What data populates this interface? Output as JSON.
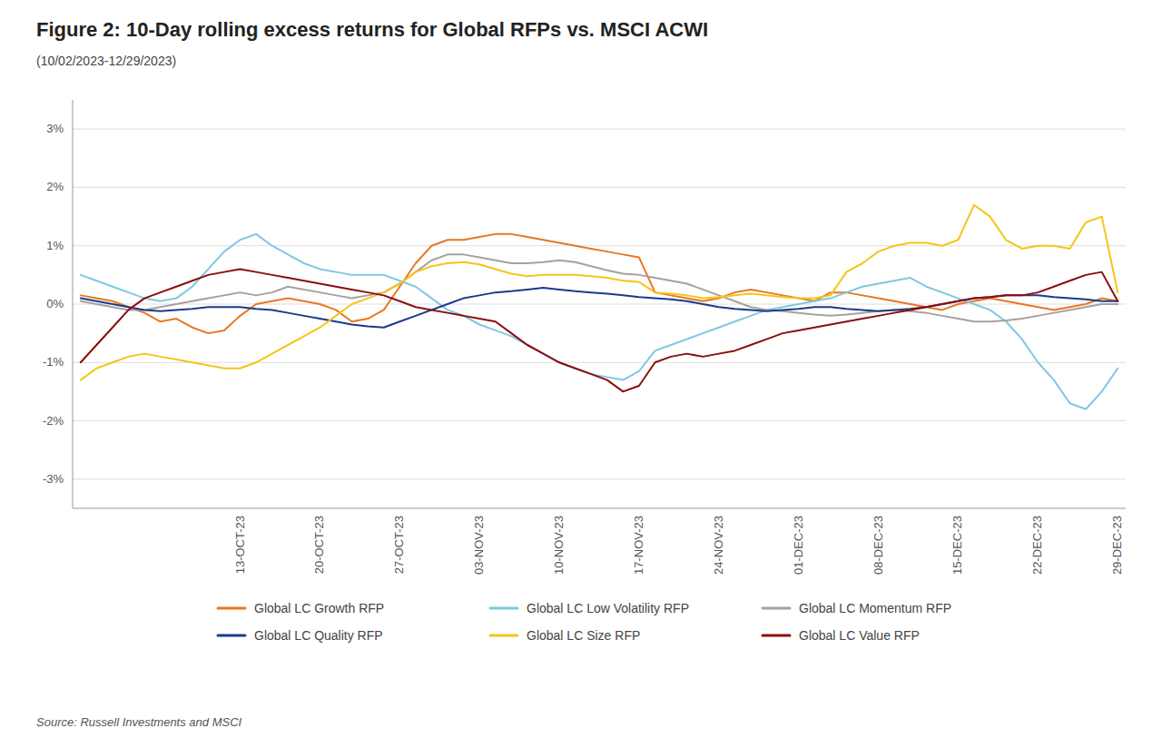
{
  "chart_data": {
    "type": "line",
    "title": "Figure 2: 10-Day rolling excess returns for Global RFPs vs. MSCI ACWI",
    "subtitle": "(10/02/2023-12/29/2023)",
    "source": "Source: Russell Investments and MSCI",
    "categories": [
      null,
      null,
      null,
      null,
      null,
      null,
      null,
      null,
      null,
      null,
      "13-OCT-23",
      null,
      null,
      null,
      null,
      "20-OCT-23",
      null,
      null,
      null,
      null,
      "27-OCT-23",
      null,
      null,
      null,
      null,
      "03-NOV-23",
      null,
      null,
      null,
      null,
      "10-NOV-23",
      null,
      null,
      null,
      null,
      "17-NOV-23",
      null,
      null,
      null,
      null,
      "24-NOV-23",
      null,
      null,
      null,
      null,
      "01-DEC-23",
      null,
      null,
      null,
      null,
      "08-DEC-23",
      null,
      null,
      null,
      null,
      "15-DEC-23",
      null,
      null,
      null,
      null,
      "22-DEC-23",
      null,
      null,
      null,
      null,
      "29-DEC-23"
    ],
    "ylim": [
      -3.5,
      3.5
    ],
    "yticks": [
      {
        "value": -3,
        "label": "-3%"
      },
      {
        "value": -2,
        "label": "-2%"
      },
      {
        "value": -1,
        "label": "-1%"
      },
      {
        "value": 0,
        "label": "0%"
      },
      {
        "value": 1,
        "label": "1%"
      },
      {
        "value": 2,
        "label": "2%"
      },
      {
        "value": 3,
        "label": "3%"
      }
    ],
    "grid": true,
    "legend": "bottom",
    "series": [
      {
        "name": "Global LC Growth RFP",
        "color": "#E87722",
        "values": [
          0.15,
          0.1,
          0.05,
          -0.05,
          -0.15,
          -0.3,
          -0.25,
          -0.4,
          -0.5,
          -0.45,
          -0.2,
          0.0,
          0.05,
          0.1,
          0.05,
          0.0,
          -0.1,
          -0.3,
          -0.25,
          -0.1,
          0.3,
          0.7,
          1.0,
          1.1,
          1.1,
          1.15,
          1.2,
          1.2,
          1.15,
          1.1,
          1.05,
          1.0,
          0.95,
          0.9,
          0.85,
          0.8,
          0.2,
          0.15,
          0.1,
          0.05,
          0.1,
          0.2,
          0.25,
          0.2,
          0.15,
          0.1,
          0.05,
          0.2,
          0.2,
          0.15,
          0.1,
          0.05,
          0.0,
          -0.05,
          -0.1,
          0.0,
          0.05,
          0.1,
          0.05,
          0.0,
          -0.05,
          -0.1,
          -0.05,
          0.0,
          0.1,
          0.05
        ]
      },
      {
        "name": "Global LC Low Volatility RFP",
        "color": "#7EC8E3",
        "values": [
          0.5,
          0.4,
          0.3,
          0.2,
          0.1,
          0.05,
          0.1,
          0.3,
          0.6,
          0.9,
          1.1,
          1.2,
          1.0,
          0.85,
          0.7,
          0.6,
          0.55,
          0.5,
          0.5,
          0.5,
          0.4,
          0.3,
          0.1,
          -0.1,
          -0.2,
          -0.35,
          -0.45,
          -0.55,
          -0.7,
          -0.85,
          -1.0,
          -1.1,
          -1.2,
          -1.25,
          -1.3,
          -1.15,
          -0.8,
          -0.7,
          -0.6,
          -0.5,
          -0.4,
          -0.3,
          -0.2,
          -0.1,
          -0.05,
          0.0,
          0.05,
          0.1,
          0.2,
          0.3,
          0.35,
          0.4,
          0.45,
          0.3,
          0.2,
          0.1,
          0.0,
          -0.1,
          -0.3,
          -0.6,
          -1.0,
          -1.3,
          -1.7,
          -1.8,
          -1.5,
          -1.1
        ]
      },
      {
        "name": "Global LC Momentum RFP",
        "color": "#A8A09C",
        "values": [
          0.05,
          0.0,
          -0.05,
          -0.1,
          -0.1,
          -0.05,
          0.0,
          0.05,
          0.1,
          0.15,
          0.2,
          0.15,
          0.2,
          0.3,
          0.25,
          0.2,
          0.15,
          0.1,
          0.15,
          0.2,
          0.35,
          0.55,
          0.75,
          0.85,
          0.85,
          0.8,
          0.75,
          0.7,
          0.7,
          0.72,
          0.75,
          0.72,
          0.65,
          0.58,
          0.52,
          0.5,
          0.45,
          0.4,
          0.35,
          0.25,
          0.15,
          0.05,
          -0.05,
          -0.1,
          -0.12,
          -0.15,
          -0.18,
          -0.2,
          -0.18,
          -0.15,
          -0.12,
          -0.1,
          -0.12,
          -0.15,
          -0.2,
          -0.25,
          -0.3,
          -0.3,
          -0.28,
          -0.25,
          -0.2,
          -0.15,
          -0.1,
          -0.05,
          0.0,
          0.0
        ]
      },
      {
        "name": "Global LC Quality RFP",
        "color": "#1B3A8C",
        "values": [
          0.1,
          0.05,
          0.0,
          -0.05,
          -0.1,
          -0.12,
          -0.1,
          -0.08,
          -0.05,
          -0.05,
          -0.05,
          -0.08,
          -0.1,
          -0.15,
          -0.2,
          -0.25,
          -0.3,
          -0.35,
          -0.38,
          -0.4,
          -0.3,
          -0.2,
          -0.1,
          0.0,
          0.1,
          0.15,
          0.2,
          0.22,
          0.25,
          0.28,
          0.25,
          0.22,
          0.2,
          0.18,
          0.15,
          0.12,
          0.1,
          0.08,
          0.05,
          0.0,
          -0.05,
          -0.08,
          -0.1,
          -0.12,
          -0.1,
          -0.08,
          -0.05,
          -0.05,
          -0.08,
          -0.1,
          -0.12,
          -0.1,
          -0.08,
          -0.05,
          0.0,
          0.05,
          0.1,
          0.12,
          0.15,
          0.15,
          0.15,
          0.12,
          0.1,
          0.08,
          0.05,
          0.05
        ]
      },
      {
        "name": "Global LC Size RFP",
        "color": "#F5C518",
        "values": [
          -1.3,
          -1.1,
          -1.0,
          -0.9,
          -0.85,
          -0.9,
          -0.95,
          -1.0,
          -1.05,
          -1.1,
          -1.1,
          -1.0,
          -0.85,
          -0.7,
          -0.55,
          -0.4,
          -0.2,
          0.0,
          0.1,
          0.2,
          0.35,
          0.55,
          0.65,
          0.7,
          0.72,
          0.68,
          0.6,
          0.52,
          0.48,
          0.5,
          0.5,
          0.5,
          0.48,
          0.45,
          0.4,
          0.38,
          0.2,
          0.18,
          0.15,
          0.1,
          0.12,
          0.15,
          0.18,
          0.15,
          0.12,
          0.1,
          0.1,
          0.15,
          0.55,
          0.7,
          0.9,
          1.0,
          1.05,
          1.05,
          1.0,
          1.1,
          1.7,
          1.5,
          1.1,
          0.95,
          1.0,
          1.0,
          0.95,
          1.4,
          1.5,
          0.2
        ]
      },
      {
        "name": "Global LC Value RFP",
        "color": "#8B0D0D",
        "values": [
          -1.0,
          -0.7,
          -0.4,
          -0.1,
          0.1,
          0.2,
          0.3,
          0.4,
          0.5,
          0.55,
          0.6,
          0.55,
          0.5,
          0.45,
          0.4,
          0.35,
          0.3,
          0.25,
          0.2,
          0.15,
          0.05,
          -0.05,
          -0.1,
          -0.15,
          -0.2,
          -0.25,
          -0.3,
          -0.5,
          -0.7,
          -0.85,
          -1.0,
          -1.1,
          -1.2,
          -1.3,
          -1.5,
          -1.4,
          -1.0,
          -0.9,
          -0.85,
          -0.9,
          -0.85,
          -0.8,
          -0.7,
          -0.6,
          -0.5,
          -0.45,
          -0.4,
          -0.35,
          -0.3,
          -0.25,
          -0.2,
          -0.15,
          -0.1,
          -0.05,
          0.0,
          0.05,
          0.1,
          0.12,
          0.15,
          0.15,
          0.2,
          0.3,
          0.4,
          0.5,
          0.55,
          0.05
        ]
      }
    ]
  }
}
